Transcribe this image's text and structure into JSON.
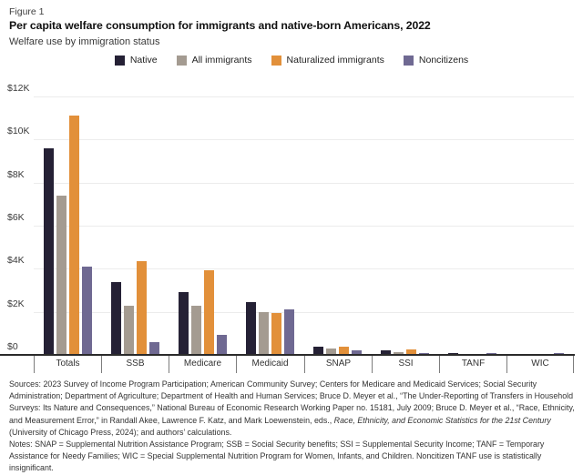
{
  "figure": {
    "label": "Figure 1",
    "title": "Per capita welfare consumption for immigrants and native-born Americans, 2022",
    "subtitle": "Welfare use by immigration status"
  },
  "legend": [
    {
      "label": "Native",
      "color": "#252135"
    },
    {
      "label": "All immigrants",
      "color": "#a49b91"
    },
    {
      "label": "Naturalized immigrants",
      "color": "#e2903a"
    },
    {
      "label": "Noncitizens",
      "color": "#6f6992"
    }
  ],
  "chart_data": {
    "type": "bar",
    "title": "Per capita welfare consumption for immigrants and native-born Americans, 2022",
    "subtitle": "Welfare use by immigration status",
    "categories": [
      "Totals",
      "SSB",
      "Medicare",
      "Medicaid",
      "SNAP",
      "SSI",
      "TANF",
      "WIC"
    ],
    "series": [
      {
        "name": "Native",
        "color": "#252135",
        "values": [
          9600,
          3400,
          2900,
          2450,
          370,
          200,
          90,
          25
        ]
      },
      {
        "name": "All immigrants",
        "color": "#a49b91",
        "values": [
          7400,
          2300,
          2300,
          2000,
          280,
          140,
          60,
          45
        ]
      },
      {
        "name": "Naturalized immigrants",
        "color": "#e2903a",
        "values": [
          11100,
          4350,
          3950,
          1950,
          400,
          240,
          60,
          30
        ]
      },
      {
        "name": "Noncitizens",
        "color": "#6f6992",
        "values": [
          4100,
          600,
          950,
          2100,
          230,
          70,
          90,
          65
        ]
      }
    ],
    "ylim": [
      0,
      12000
    ],
    "ytick_step": 2000,
    "ytick_labels": [
      "$0",
      "$2K",
      "$4K",
      "$6K",
      "$8K",
      "$10K",
      "$12K"
    ],
    "xlabel": "",
    "ylabel": "",
    "grid": true,
    "legend_position": "top"
  },
  "footnotes": {
    "sources_prefix": "Sources: 2023 Survey of Income Program Participation; American Community Survey; Centers for Medicare and Medicaid Services; Social Security Administration; Department of Agriculture; Department of Health and Human Services; Bruce D. Meyer et al., “The Under-Reporting of Transfers in Household Surveys: Its Nature and Consequences,” National Bureau of Economic Research Working Paper no. 15181, July 2009; Bruce D. Meyer et al., “Race, Ethnicity, and Measurement Error,” in Randall Akee, Lawrence F. Katz, and Mark Loewenstein, eds., ",
    "sources_italic": "Race, Ethnicity, and Economic Statistics for the 21st Century",
    "sources_suffix": " (University of Chicago Press, 2024); and authors’ calculations.",
    "notes": "Notes: SNAP = Supplemental Nutrition Assistance Program; SSB = Social Security benefits; SSI = Supplemental Security Income; TANF = Temporary Assistance for Needy Families; WIC = Special Supplemental Nutrition Program for Women, Infants, and Children. Noncitizen TANF use is statistically insignificant."
  }
}
